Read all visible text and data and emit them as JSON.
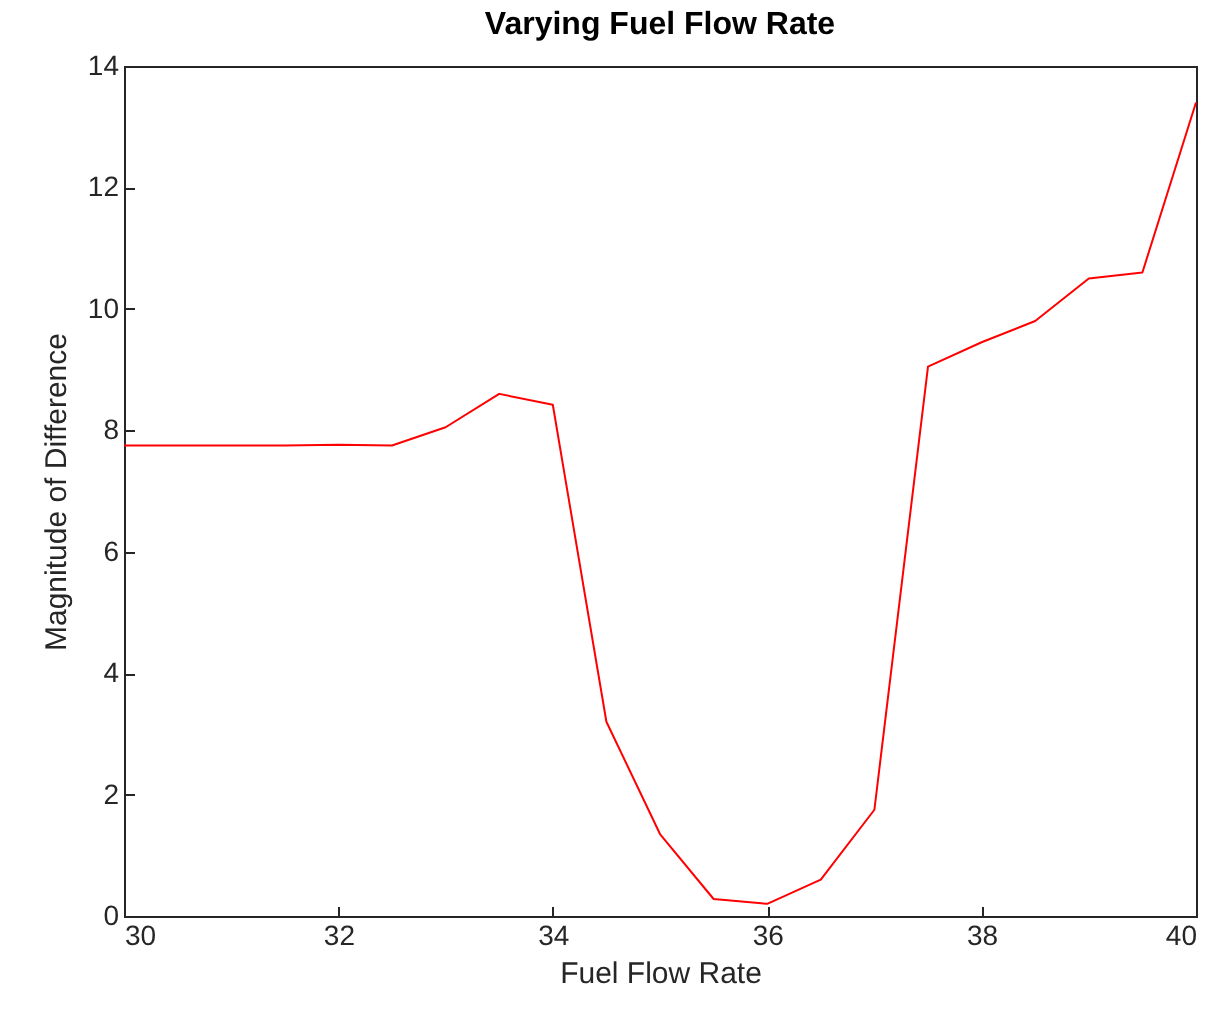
{
  "chart_data": {
    "type": "line",
    "title": "Varying Fuel Flow Rate",
    "xlabel": "Fuel Flow Rate",
    "ylabel": "Magnitude of Difference",
    "x": [
      30,
      30.5,
      31,
      31.5,
      32,
      32.5,
      33,
      33.5,
      34,
      34.5,
      35,
      35.5,
      36,
      36.5,
      37,
      37.5,
      38,
      38.5,
      39,
      39.5,
      40
    ],
    "series": [
      {
        "color": "#ff0000",
        "values": [
          7.75,
          7.75,
          7.75,
          7.75,
          7.76,
          7.75,
          8.05,
          8.6,
          8.42,
          3.2,
          1.35,
          0.28,
          0.2,
          0.6,
          1.75,
          9.05,
          9.45,
          9.8,
          10.5,
          10.6,
          13.4
        ]
      }
    ],
    "xlim": [
      30,
      40
    ],
    "xticks": [
      30,
      32,
      34,
      36,
      38,
      40
    ],
    "ylim": [
      0,
      14
    ],
    "yticks": [
      0,
      2,
      4,
      6,
      8,
      10,
      12,
      14
    ],
    "grid": false,
    "legend": false,
    "marker": "none",
    "line_style": "solid"
  }
}
